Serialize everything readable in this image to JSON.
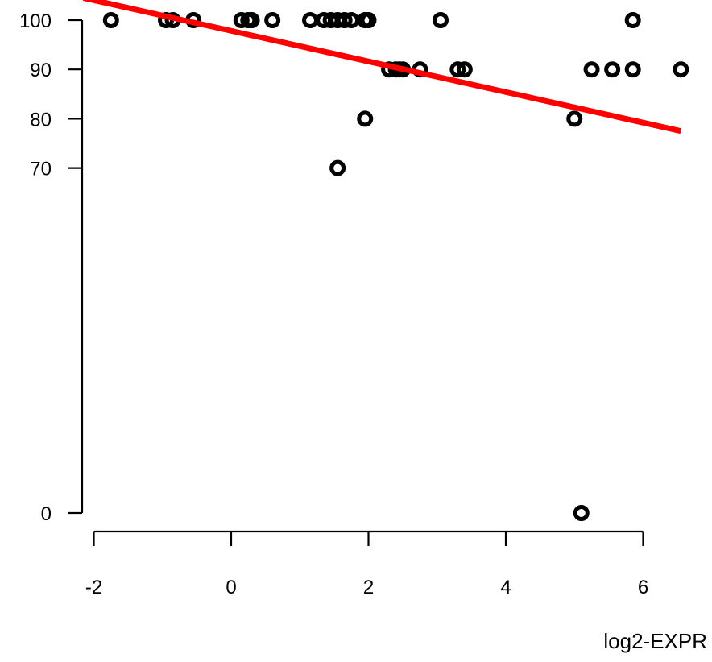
{
  "chart_data": {
    "type": "scatter",
    "title": "",
    "xlabel": "log2-EXPR",
    "ylabel": "",
    "xlim": [
      -2.15,
      6.65
    ],
    "ylim": [
      -2,
      102
    ],
    "x_ticks": [
      -2,
      0,
      2,
      4,
      6
    ],
    "x_tick_labels": [
      "-2",
      "0",
      "2",
      "4",
      "6"
    ],
    "y_ticks": [
      0,
      70,
      80,
      90,
      100
    ],
    "y_tick_labels": [
      "0",
      "70",
      "80",
      "90",
      "100"
    ],
    "grid": false,
    "legend": "none",
    "point_color": "#000000",
    "line_color": "#ff0000",
    "points": [
      {
        "x": -1.75,
        "y": 100
      },
      {
        "x": -0.95,
        "y": 100
      },
      {
        "x": -0.85,
        "y": 100
      },
      {
        "x": -0.55,
        "y": 100
      },
      {
        "x": 0.15,
        "y": 100
      },
      {
        "x": 0.25,
        "y": 100
      },
      {
        "x": 0.3,
        "y": 100
      },
      {
        "x": 0.6,
        "y": 100
      },
      {
        "x": 1.15,
        "y": 100
      },
      {
        "x": 1.35,
        "y": 100
      },
      {
        "x": 1.45,
        "y": 100
      },
      {
        "x": 1.55,
        "y": 100
      },
      {
        "x": 1.65,
        "y": 100
      },
      {
        "x": 1.75,
        "y": 100
      },
      {
        "x": 1.95,
        "y": 100
      },
      {
        "x": 2.0,
        "y": 100
      },
      {
        "x": 3.05,
        "y": 100
      },
      {
        "x": 5.85,
        "y": 100
      },
      {
        "x": 2.3,
        "y": 90
      },
      {
        "x": 2.4,
        "y": 90
      },
      {
        "x": 2.45,
        "y": 90
      },
      {
        "x": 2.5,
        "y": 90
      },
      {
        "x": 2.75,
        "y": 90
      },
      {
        "x": 3.3,
        "y": 90
      },
      {
        "x": 3.4,
        "y": 90
      },
      {
        "x": 5.25,
        "y": 90
      },
      {
        "x": 5.55,
        "y": 90
      },
      {
        "x": 5.85,
        "y": 90
      },
      {
        "x": 6.55,
        "y": 90
      },
      {
        "x": 1.95,
        "y": 80
      },
      {
        "x": 5.0,
        "y": 80
      },
      {
        "x": 1.55,
        "y": 70
      },
      {
        "x": 5.1,
        "y": 0
      }
    ],
    "regression_line": {
      "x": [
        -2.15,
        6.55
      ],
      "y": [
        104.5,
        77.5
      ]
    }
  }
}
